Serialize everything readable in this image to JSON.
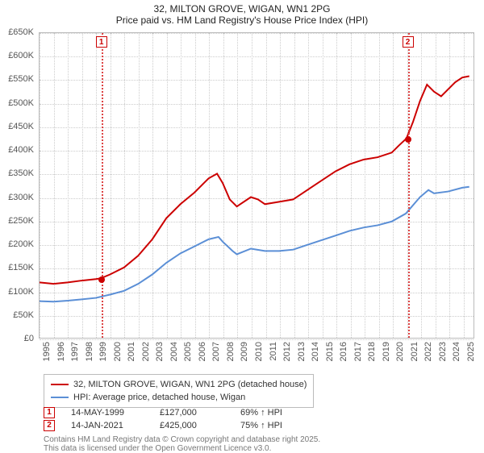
{
  "title": {
    "line1": "32, MILTON GROVE, WIGAN, WN1 2PG",
    "line2": "Price paid vs. HM Land Registry's House Price Index (HPI)"
  },
  "chart": {
    "type": "line",
    "background_color": "#ffffff",
    "grid_color": "#cccccc",
    "border_color": "#bbbbbb",
    "x_axis": {
      "years": [
        1995,
        1996,
        1997,
        1998,
        1999,
        2000,
        2001,
        2002,
        2003,
        2004,
        2005,
        2006,
        2007,
        2008,
        2009,
        2010,
        2011,
        2012,
        2013,
        2014,
        2015,
        2016,
        2017,
        2018,
        2019,
        2020,
        2021,
        2022,
        2023,
        2024,
        2025
      ],
      "xmin": 1995,
      "xmax": 2025.8
    },
    "y_axis": {
      "ticks": [
        0,
        50000,
        100000,
        150000,
        200000,
        250000,
        300000,
        350000,
        400000,
        450000,
        500000,
        550000,
        600000,
        650000
      ],
      "labels": [
        "£0",
        "£50K",
        "£100K",
        "£150K",
        "£200K",
        "£250K",
        "£300K",
        "£350K",
        "£400K",
        "£450K",
        "£500K",
        "£550K",
        "£600K",
        "£650K"
      ],
      "ymin": 0,
      "ymax": 650000
    },
    "series": [
      {
        "name": "32, MILTON GROVE, WIGAN, WN1 2PG (detached house)",
        "color": "#cc0000",
        "line_width": 2,
        "data": [
          [
            1995,
            118000
          ],
          [
            1996,
            115000
          ],
          [
            1997,
            118000
          ],
          [
            1998,
            122000
          ],
          [
            1999,
            125000
          ],
          [
            1999.37,
            127000
          ],
          [
            2000,
            135000
          ],
          [
            2001,
            150000
          ],
          [
            2002,
            175000
          ],
          [
            2003,
            210000
          ],
          [
            2004,
            255000
          ],
          [
            2005,
            285000
          ],
          [
            2006,
            310000
          ],
          [
            2007,
            340000
          ],
          [
            2007.6,
            350000
          ],
          [
            2008,
            330000
          ],
          [
            2008.5,
            295000
          ],
          [
            2009,
            280000
          ],
          [
            2010,
            300000
          ],
          [
            2010.5,
            295000
          ],
          [
            2011,
            285000
          ],
          [
            2012,
            290000
          ],
          [
            2013,
            295000
          ],
          [
            2014,
            315000
          ],
          [
            2015,
            335000
          ],
          [
            2016,
            355000
          ],
          [
            2017,
            370000
          ],
          [
            2018,
            380000
          ],
          [
            2019,
            385000
          ],
          [
            2020,
            395000
          ],
          [
            2020.5,
            410000
          ],
          [
            2021.04,
            425000
          ],
          [
            2021.5,
            460000
          ],
          [
            2022,
            505000
          ],
          [
            2022.5,
            540000
          ],
          [
            2023,
            525000
          ],
          [
            2023.5,
            515000
          ],
          [
            2024,
            530000
          ],
          [
            2024.5,
            545000
          ],
          [
            2025,
            555000
          ],
          [
            2025.5,
            558000
          ]
        ]
      },
      {
        "name": "HPI: Average price, detached house, Wigan",
        "color": "#5b8fd6",
        "line_width": 2,
        "data": [
          [
            1995,
            78000
          ],
          [
            1996,
            77000
          ],
          [
            1997,
            79000
          ],
          [
            1998,
            82000
          ],
          [
            1999,
            85000
          ],
          [
            2000,
            92000
          ],
          [
            2001,
            100000
          ],
          [
            2002,
            115000
          ],
          [
            2003,
            135000
          ],
          [
            2004,
            160000
          ],
          [
            2005,
            180000
          ],
          [
            2006,
            195000
          ],
          [
            2007,
            210000
          ],
          [
            2007.7,
            215000
          ],
          [
            2008,
            205000
          ],
          [
            2008.7,
            185000
          ],
          [
            2009,
            178000
          ],
          [
            2010,
            190000
          ],
          [
            2011,
            185000
          ],
          [
            2012,
            185000
          ],
          [
            2013,
            188000
          ],
          [
            2014,
            198000
          ],
          [
            2015,
            208000
          ],
          [
            2016,
            218000
          ],
          [
            2017,
            228000
          ],
          [
            2018,
            235000
          ],
          [
            2019,
            240000
          ],
          [
            2020,
            248000
          ],
          [
            2021,
            265000
          ],
          [
            2022,
            300000
          ],
          [
            2022.6,
            315000
          ],
          [
            2023,
            308000
          ],
          [
            2024,
            312000
          ],
          [
            2025,
            320000
          ],
          [
            2025.5,
            322000
          ]
        ]
      }
    ],
    "events": [
      {
        "n": "1",
        "x": 1999.37,
        "date": "14-MAY-1999",
        "price": "£127,000",
        "hpi": "69% ↑ HPI",
        "marker_y": 127000
      },
      {
        "n": "2",
        "x": 2021.04,
        "date": "14-JAN-2021",
        "price": "£425,000",
        "hpi": "75% ↑ HPI",
        "marker_y": 425000
      }
    ],
    "event_line_color": "#dd4444",
    "event_box_border": "#cc0000"
  },
  "legend": {
    "items": [
      {
        "color": "#cc0000",
        "label": "32, MILTON GROVE, WIGAN, WN1 2PG (detached house)"
      },
      {
        "color": "#5b8fd6",
        "label": "HPI: Average price, detached house, Wigan"
      }
    ]
  },
  "footer": {
    "line1": "Contains HM Land Registry data © Crown copyright and database right 2025.",
    "line2": "This data is licensed under the Open Government Licence v3.0."
  }
}
